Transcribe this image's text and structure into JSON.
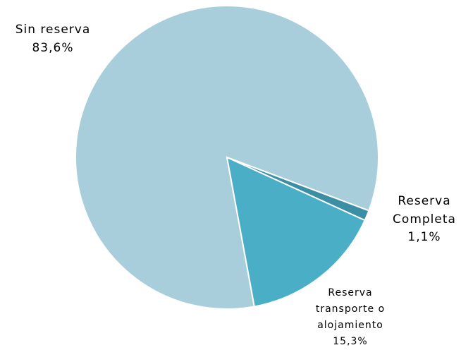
{
  "chart_data": {
    "type": "pie",
    "categories": [
      "Sin reserva",
      "Reserva Completa",
      "Reserva transporte o alojamiento"
    ],
    "values": [
      83.6,
      1.1,
      15.3
    ],
    "value_labels": [
      "83,6%",
      "1,1%",
      "15,3%"
    ],
    "colors": [
      "#a9cedb",
      "#3a8fa5",
      "#4aaec6"
    ]
  }
}
